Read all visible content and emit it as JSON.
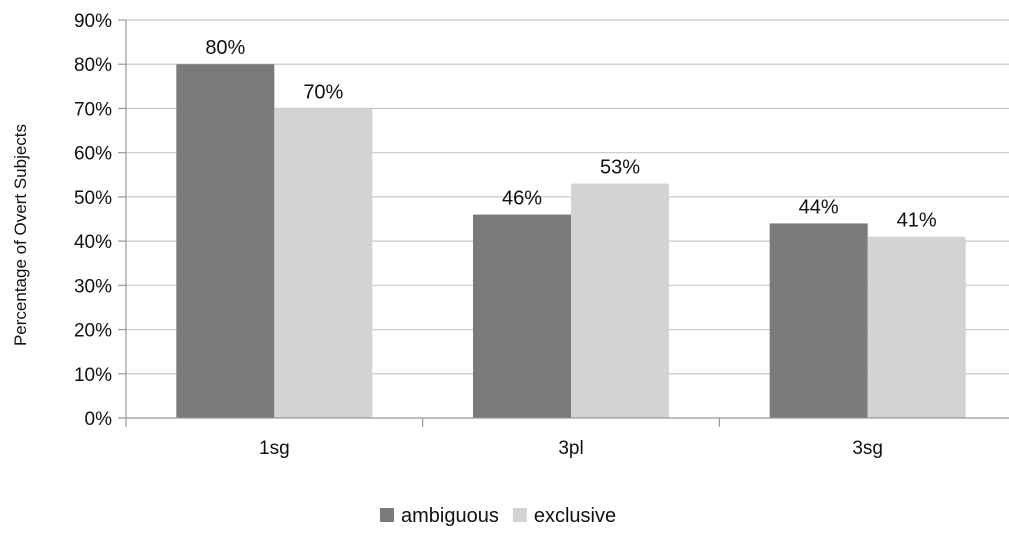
{
  "chart_data": {
    "type": "bar",
    "categories": [
      "1sg",
      "3pl",
      "3sg"
    ],
    "series": [
      {
        "name": "ambiguous",
        "values": [
          80,
          46,
          44
        ],
        "labels": [
          "80%",
          "46%",
          "44%"
        ],
        "color": "#7a7a7a"
      },
      {
        "name": "exclusive",
        "values": [
          70,
          53,
          41
        ],
        "labels": [
          "70%",
          "53%",
          "41%"
        ],
        "color": "#d3d3d3"
      }
    ],
    "ylabel": "Percentage of Overt Subjects",
    "ylim": [
      0,
      90
    ],
    "yticks": [
      0,
      10,
      20,
      30,
      40,
      50,
      60,
      70,
      80,
      90
    ],
    "ytick_labels": [
      "0%",
      "10%",
      "20%",
      "30%",
      "40%",
      "50%",
      "60%",
      "70%",
      "80%",
      "90%"
    ],
    "grid": true,
    "legend": "bottom-center"
  }
}
